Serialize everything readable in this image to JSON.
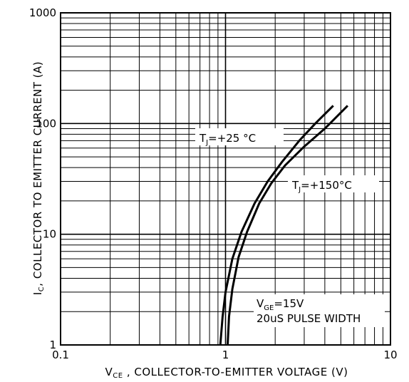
{
  "chart_data": {
    "type": "line",
    "x_scale": "log",
    "y_scale": "log",
    "xlim": [
      0.1,
      10
    ],
    "ylim": [
      1,
      1000
    ],
    "grid": true,
    "x_ticks": [
      "0.1",
      "1",
      "10"
    ],
    "y_ticks": [
      "1",
      "10",
      "100",
      "1000"
    ],
    "xlabel": {
      "main": "V",
      "sub": "CE",
      "rest": " ,  COLLECTOR-TO-EMITTER VOLTAGE (V)"
    },
    "ylabel": {
      "main": "I",
      "sub": "C",
      "rest": ",  COLLECTOR TO EMITTER CURRENT (A)"
    },
    "series": [
      {
        "name_main": "T",
        "name_sub": "J",
        "name_rest": "=+25 °C",
        "x": [
          0.93,
          0.96,
          1.0,
          1.1,
          1.25,
          1.5,
          1.8,
          2.2,
          2.8,
          3.5,
          4.5
        ],
        "y": [
          1,
          1.8,
          3,
          6,
          10.5,
          19,
          30,
          45,
          70,
          100,
          145
        ]
      },
      {
        "name_main": "T",
        "name_sub": "J",
        "name_rest": "=+150°C",
        "x": [
          1.03,
          1.05,
          1.1,
          1.2,
          1.35,
          1.6,
          1.9,
          2.3,
          3.0,
          4.0,
          5.5
        ],
        "y": [
          1,
          1.8,
          3.2,
          6.2,
          10.5,
          19,
          29,
          42,
          62,
          90,
          145
        ]
      }
    ],
    "annotation": {
      "line1_main": "V",
      "line1_sub": "GE",
      "line1_rest": "=15V",
      "line2": "20uS  PULSE  WIDTH"
    }
  }
}
